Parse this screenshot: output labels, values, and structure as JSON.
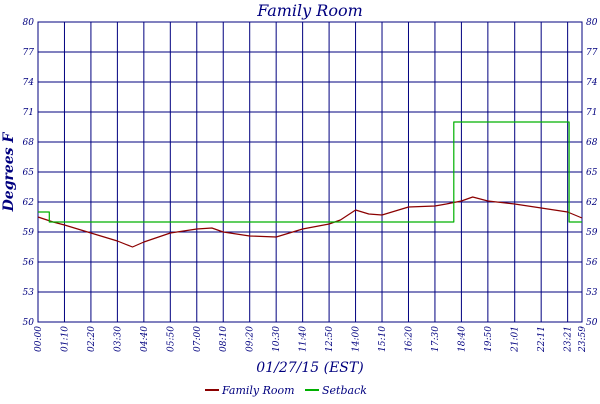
{
  "chart_data": {
    "type": "line",
    "title": "Family Room",
    "xlabel": "01/27/15 (EST)",
    "ylabel": "Degrees F",
    "ylim": [
      50,
      80
    ],
    "yticks": [
      50,
      53,
      56,
      59,
      62,
      65,
      68,
      71,
      74,
      77,
      80
    ],
    "xlim": [
      "00:00",
      "23:59"
    ],
    "xticks": [
      "00:00",
      "01:10",
      "02:20",
      "03:30",
      "04:40",
      "05:50",
      "07:00",
      "08:10",
      "09:20",
      "10:30",
      "11:40",
      "12:50",
      "14:00",
      "15:10",
      "16:20",
      "17:30",
      "18:40",
      "19:50",
      "21:01",
      "22:11",
      "23:21",
      "23:59"
    ],
    "grid": true,
    "legend_position": "bottom",
    "series": [
      {
        "name": "Family Room",
        "color": "#8b0000",
        "x": [
          "00:00",
          "00:40",
          "01:10",
          "02:20",
          "03:30",
          "04:10",
          "04:40",
          "05:50",
          "07:00",
          "07:40",
          "08:10",
          "09:20",
          "10:30",
          "11:40",
          "12:50",
          "13:20",
          "14:00",
          "14:35",
          "15:10",
          "16:20",
          "17:30",
          "18:00",
          "18:40",
          "19:10",
          "19:50",
          "21:01",
          "22:11",
          "23:21",
          "23:59"
        ],
        "values": [
          60.5,
          60.0,
          59.7,
          58.9,
          58.1,
          57.5,
          58.0,
          58.9,
          59.3,
          59.4,
          59.0,
          58.6,
          58.5,
          59.3,
          59.8,
          60.2,
          61.2,
          60.8,
          60.7,
          61.5,
          61.6,
          61.8,
          62.1,
          62.5,
          62.1,
          61.8,
          61.4,
          61.0,
          60.4
        ]
      },
      {
        "name": "Setback",
        "color": "#00b000",
        "x": [
          "00:00",
          "00:30",
          "18:10",
          "18:20",
          "23:15",
          "23:25",
          "23:59"
        ],
        "values": [
          61.0,
          60.0,
          60.0,
          70.0,
          70.0,
          60.0,
          60.0
        ]
      }
    ]
  }
}
